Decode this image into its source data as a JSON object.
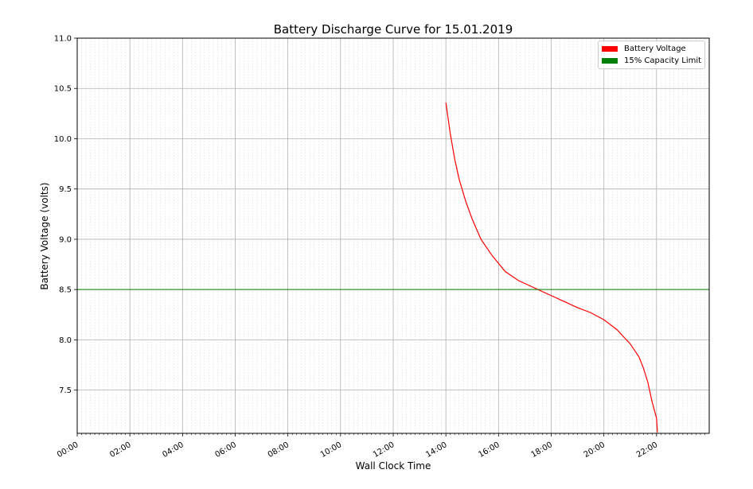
{
  "chart_data": {
    "type": "line",
    "title": "Battery Discharge Curve for 15.01.2019",
    "xlabel": "Wall Clock Time",
    "ylabel": "Battery Voltage (volts)",
    "xlim_hours": [
      0,
      24
    ],
    "ylim": [
      7.07,
      11.0
    ],
    "x_ticks": [
      "00:00",
      "02:00",
      "04:00",
      "06:00",
      "08:00",
      "10:00",
      "12:00",
      "14:00",
      "16:00",
      "18:00",
      "20:00",
      "22:00"
    ],
    "y_ticks": [
      "7.5",
      "8.0",
      "8.5",
      "9.0",
      "9.5",
      "10.0",
      "10.5",
      "11.0"
    ],
    "grid": true,
    "legend_position": "top-right",
    "series": [
      {
        "name": "Battery Voltage",
        "color": "#ff0000",
        "x": [
          "14:00",
          "14:10",
          "14:20",
          "14:30",
          "14:45",
          "15:00",
          "15:20",
          "15:45",
          "16:15",
          "16:45",
          "17:15",
          "17:30",
          "18:00",
          "18:30",
          "19:00",
          "19:30",
          "20:00",
          "20:30",
          "21:00",
          "21:20",
          "21:30",
          "21:40",
          "21:50",
          "22:00",
          "22:02"
        ],
        "y": [
          10.36,
          10.05,
          9.8,
          9.6,
          9.38,
          9.2,
          9.0,
          8.84,
          8.68,
          8.59,
          8.53,
          8.5,
          8.44,
          8.38,
          8.32,
          8.27,
          8.2,
          8.1,
          7.96,
          7.83,
          7.72,
          7.58,
          7.38,
          7.22,
          7.08
        ]
      },
      {
        "name": "15% Capacity Limit",
        "color": "#008000",
        "x": [
          "00:00",
          "24:00"
        ],
        "y": [
          8.5,
          8.5
        ]
      }
    ]
  }
}
